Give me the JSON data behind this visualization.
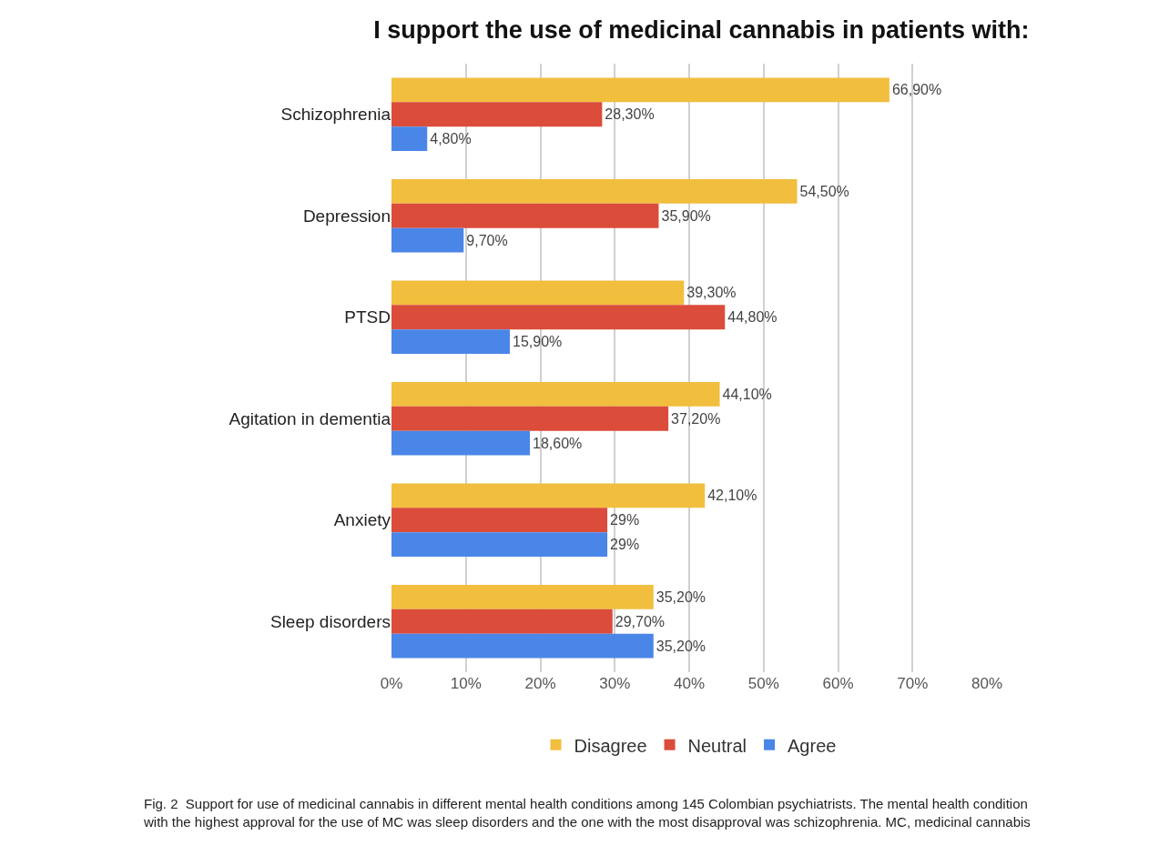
{
  "chart_data": {
    "type": "bar",
    "orientation": "horizontal",
    "title": "I support the use of medicinal cannabis in patients with:",
    "categories": [
      "Schizophrenia",
      "Depression",
      "PTSD",
      "Agitation in dementia",
      "Anxiety",
      "Sleep disorders"
    ],
    "series": [
      {
        "name": "Disagree",
        "color": "#f1be3e",
        "values": [
          66.9,
          54.5,
          39.3,
          44.1,
          42.1,
          35.2
        ],
        "value_labels": [
          "66,90%",
          "54,50%",
          "39,30%",
          "44,10%",
          "42,10%",
          "35,20%"
        ]
      },
      {
        "name": "Neutral",
        "color": "#db4c3b",
        "values": [
          28.3,
          35.9,
          44.8,
          37.2,
          29,
          29.7
        ],
        "value_labels": [
          "28,30%",
          "35,90%",
          "44,80%",
          "37,20%",
          "29%",
          "29,70%"
        ]
      },
      {
        "name": "Agree",
        "color": "#4a86e8",
        "values": [
          4.8,
          9.7,
          15.9,
          18.6,
          29,
          35.2
        ],
        "value_labels": [
          "4,80%",
          "9,70%",
          "15,90%",
          "18,60%",
          "29%",
          "35,20%"
        ]
      }
    ],
    "xlim": [
      0,
      80
    ],
    "xticks": [
      {
        "value": 0,
        "label": "0%"
      },
      {
        "value": 10,
        "label": "10%"
      },
      {
        "value": 20,
        "label": "20%"
      },
      {
        "value": 30,
        "label": "30%"
      },
      {
        "value": 40,
        "label": "40%"
      },
      {
        "value": 50,
        "label": "50%"
      },
      {
        "value": 60,
        "label": "60%"
      },
      {
        "value": 70,
        "label": "70%"
      },
      {
        "value": 80,
        "label": "80%"
      }
    ],
    "grid": "x",
    "legend": "bottom",
    "annotations": [
      "Fig. 2  Support for use of medicinal cannabis in different mental health conditions among 145 Colombian psychiatrists. The mental health condition with the highest approval for the use of MC was sleep disorders and the one with the most disapproval was schizophrenia. MC, medicinal cannabis"
    ]
  }
}
